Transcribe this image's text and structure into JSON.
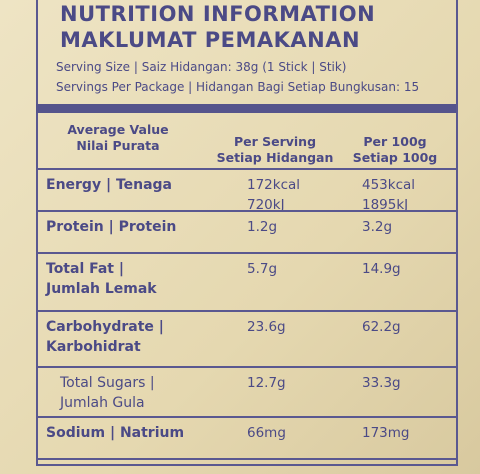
{
  "header": {
    "title": "NUTRITION INFORMATION",
    "title_translation": "MAKLUMAT PEMAKANAN",
    "serving_size": "Serving Size | Saiz Hidangan: 38g (1 Stick | Stik)",
    "servings_per_package": "Servings Per Package | Hidangan Bagi Setiap Bungkusan: 15"
  },
  "table": {
    "columns": [
      [
        "Average Value",
        "Nilai Purata"
      ],
      [
        "Per Serving",
        "Setiap Hidangan"
      ],
      [
        "Per 100g",
        "Setiap 100g"
      ]
    ],
    "rows": [
      [
        [
          "Energy | Tenaga"
        ],
        [
          "172kcal",
          "720kJ"
        ],
        [
          "453kcal",
          "1895kJ"
        ]
      ],
      [
        [
          "Protein | Protein"
        ],
        [
          "1.2g"
        ],
        [
          "3.2g"
        ]
      ],
      [
        [
          "Total Fat |",
          "Jumlah Lemak"
        ],
        [
          "5.7g"
        ],
        [
          "14.9g"
        ]
      ],
      [
        [
          "Carbohydrate |",
          "Karbohidrat"
        ],
        [
          "23.6g"
        ],
        [
          "62.2g"
        ]
      ],
      [
        [
          "Total Sugars |",
          "Jumlah Gula"
        ],
        [
          "12.7g"
        ],
        [
          "33.3g"
        ]
      ],
      [
        [
          "Sodium | Natrium"
        ],
        [
          "66mg"
        ],
        [
          "173mg"
        ]
      ]
    ]
  }
}
